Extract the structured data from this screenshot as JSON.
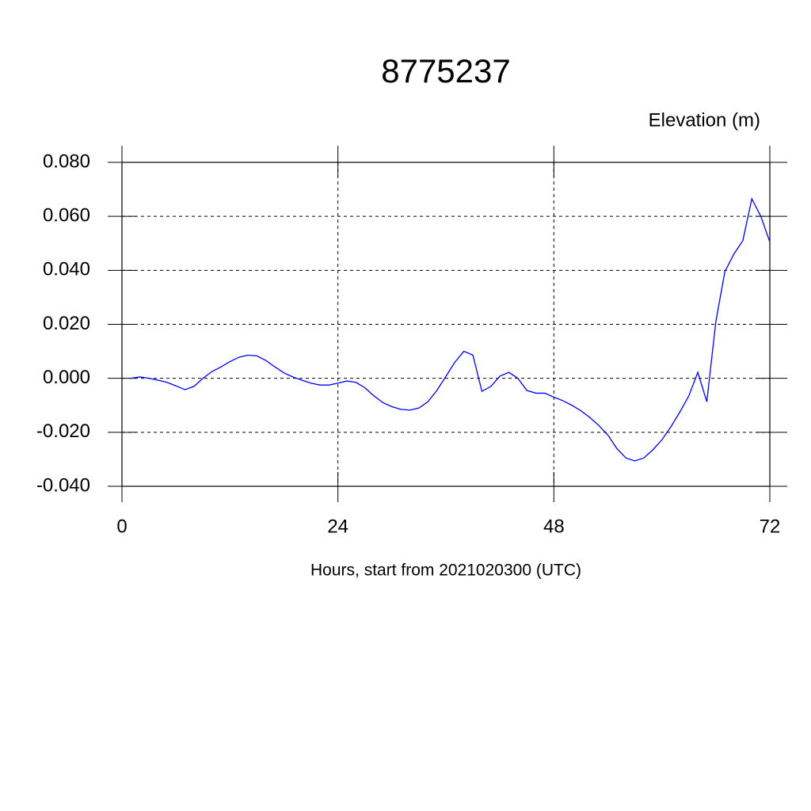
{
  "chart_data": {
    "type": "line",
    "title": "8775237",
    "y_label": "Elevation (m)",
    "x_label": "Hours, start from 2021020300 (UTC)",
    "x": [
      1,
      2,
      3,
      4,
      5,
      6,
      7,
      8,
      9,
      10,
      11,
      12,
      13,
      14,
      15,
      16,
      17,
      18,
      19,
      20,
      21,
      22,
      23,
      24,
      25,
      26,
      27,
      28,
      29,
      30,
      31,
      32,
      33,
      34,
      35,
      36,
      37,
      38,
      39,
      40,
      41,
      42,
      43,
      44,
      45,
      46,
      47,
      48,
      49,
      50,
      51,
      52,
      53,
      54,
      55,
      56,
      57,
      58,
      59,
      60,
      61,
      62,
      63,
      64,
      65,
      66,
      67,
      68,
      69,
      70,
      71,
      72
    ],
    "series": [
      {
        "name": "Elevation",
        "color": "#0000ff",
        "values": [
          0.0,
          0.0005,
          0.0,
          -0.0007,
          -0.0015,
          -0.0028,
          -0.0042,
          -0.003,
          0.0,
          0.0025,
          0.0042,
          0.0062,
          0.0078,
          0.0086,
          0.0083,
          0.0066,
          0.0042,
          0.002,
          0.0005,
          -0.0007,
          -0.0018,
          -0.0025,
          -0.0025,
          -0.0018,
          -0.001,
          -0.0015,
          -0.0035,
          -0.0065,
          -0.009,
          -0.0105,
          -0.0115,
          -0.0118,
          -0.011,
          -0.0087,
          -0.0045,
          0.0007,
          0.006,
          0.01,
          0.0086,
          -0.0048,
          -0.003,
          0.0008,
          0.0022,
          0.0,
          -0.0045,
          -0.0055,
          -0.0055,
          -0.007,
          -0.0083,
          -0.01,
          -0.012,
          -0.0145,
          -0.0175,
          -0.021,
          -0.026,
          -0.0295,
          -0.0306,
          -0.0295,
          -0.0265,
          -0.0228,
          -0.018,
          -0.0125,
          -0.0065,
          0.0022,
          -0.0087,
          0.021,
          0.0395,
          0.046,
          0.051,
          0.0665,
          0.06,
          0.0505
        ]
      }
    ],
    "xlim": [
      0,
      72
    ],
    "xticks": [
      0,
      24,
      48,
      72
    ],
    "ylim": [
      -0.04,
      0.08
    ],
    "yticks": [
      {
        "value": -0.04,
        "label": "-0.040"
      },
      {
        "value": -0.02,
        "label": "-0.020"
      },
      {
        "value": 0,
        "label": "0.000"
      },
      {
        "value": 0.02,
        "label": "0.020"
      },
      {
        "value": 0.04,
        "label": "0.040"
      },
      {
        "value": 0.06,
        "label": "0.060"
      },
      {
        "value": 0.08,
        "label": "0.080"
      }
    ],
    "grid": true
  }
}
